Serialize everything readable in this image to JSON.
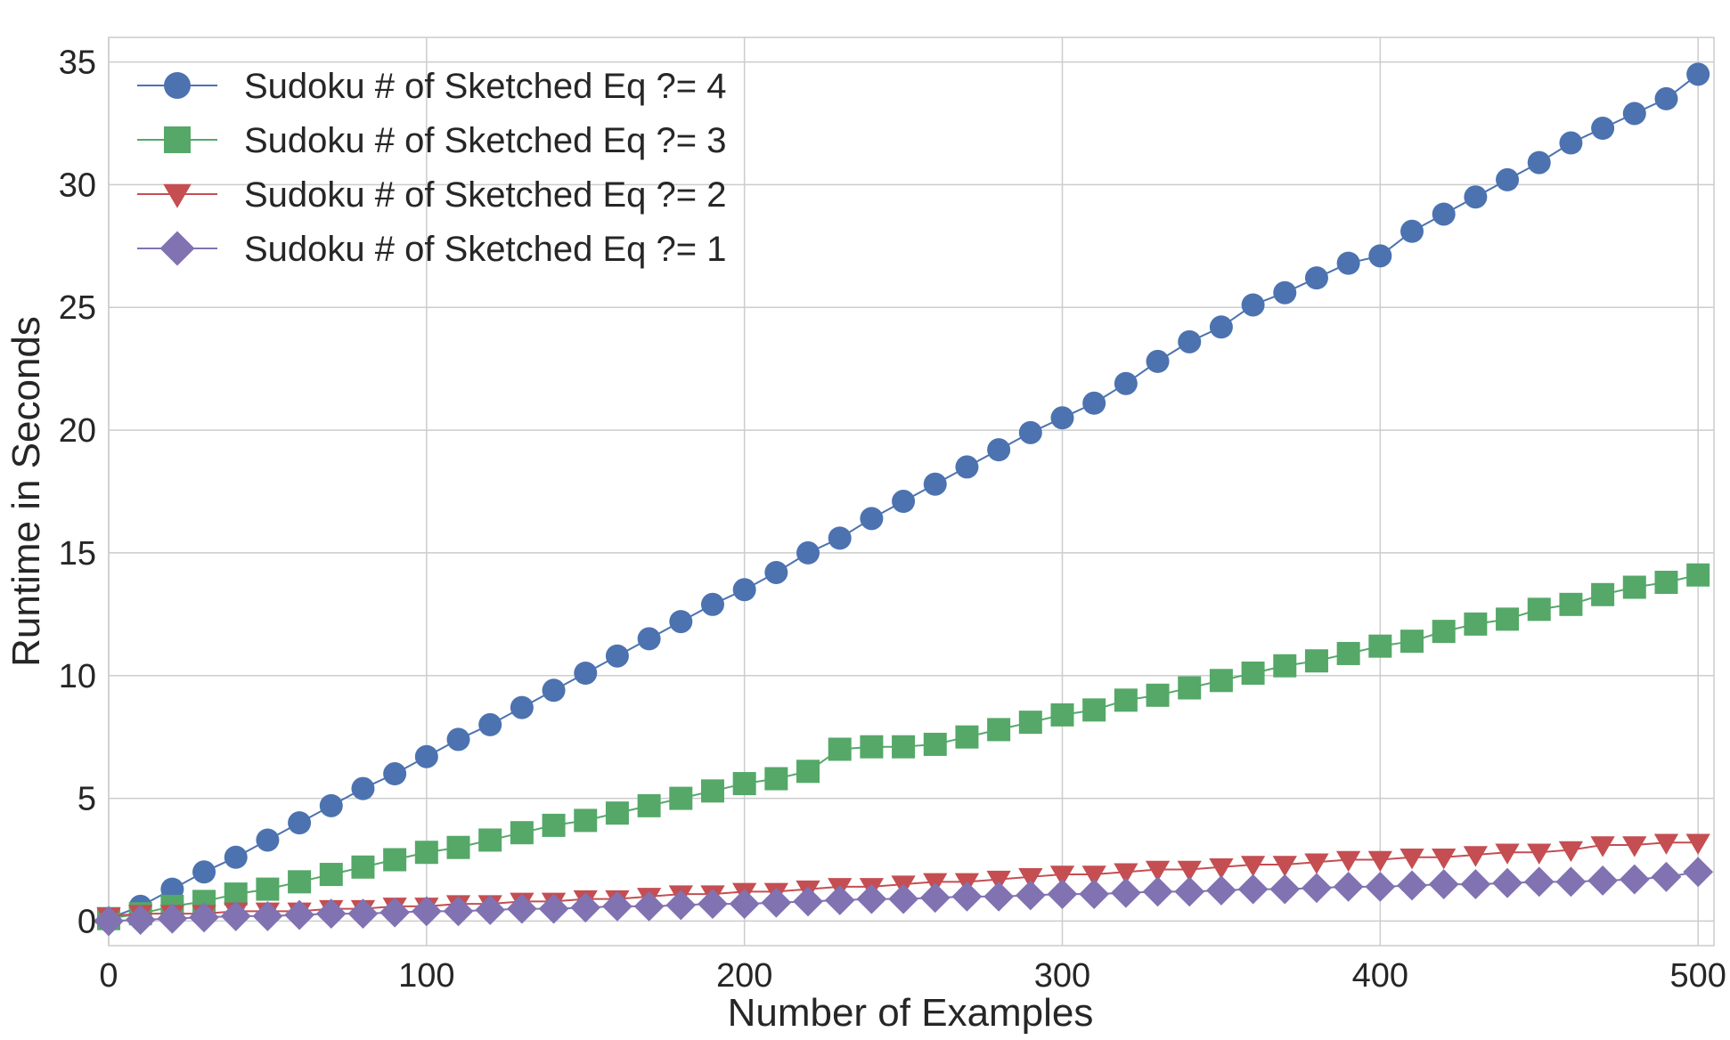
{
  "chart_data": {
    "type": "line",
    "xlabel": "Number of Examples",
    "ylabel": "Runtime in Seconds",
    "xlim": [
      0,
      505
    ],
    "ylim": [
      -1,
      36
    ],
    "xticks": [
      0,
      100,
      200,
      300,
      400,
      500
    ],
    "yticks": [
      0,
      5,
      10,
      15,
      20,
      25,
      30,
      35
    ],
    "grid": true,
    "legend_position": "top-left",
    "x": [
      0,
      10,
      20,
      30,
      40,
      50,
      60,
      70,
      80,
      90,
      100,
      110,
      120,
      130,
      140,
      150,
      160,
      170,
      180,
      190,
      200,
      210,
      220,
      230,
      240,
      250,
      260,
      270,
      280,
      290,
      300,
      310,
      320,
      330,
      340,
      350,
      360,
      370,
      380,
      390,
      400,
      410,
      420,
      430,
      440,
      450,
      460,
      470,
      480,
      490,
      500
    ],
    "series": [
      {
        "name": "Sudoku # of Sketched Eq ?= 4",
        "color": "#4c72b0",
        "marker": "circle",
        "values": [
          0.1,
          0.6,
          1.3,
          2.0,
          2.6,
          3.3,
          4.0,
          4.7,
          5.4,
          6.0,
          6.7,
          7.4,
          8.0,
          8.7,
          9.4,
          10.1,
          10.8,
          11.5,
          12.2,
          12.9,
          13.5,
          14.2,
          15.0,
          15.6,
          16.4,
          17.1,
          17.8,
          18.5,
          19.2,
          19.9,
          20.5,
          21.1,
          21.9,
          22.8,
          23.6,
          24.2,
          25.1,
          25.6,
          26.2,
          26.8,
          27.1,
          28.1,
          28.8,
          29.5,
          30.2,
          30.9,
          31.7,
          32.3,
          32.9,
          33.5,
          34.5
        ]
      },
      {
        "name": "Sudoku # of Sketched Eq ?= 3",
        "color": "#55a868",
        "marker": "square",
        "values": [
          0.1,
          0.3,
          0.6,
          0.8,
          1.1,
          1.3,
          1.6,
          1.9,
          2.2,
          2.5,
          2.8,
          3.0,
          3.3,
          3.6,
          3.9,
          4.1,
          4.4,
          4.7,
          5.0,
          5.3,
          5.6,
          5.8,
          6.1,
          7.0,
          7.1,
          7.1,
          7.2,
          7.5,
          7.8,
          8.1,
          8.4,
          8.6,
          9.0,
          9.2,
          9.5,
          9.8,
          10.1,
          10.4,
          10.6,
          10.9,
          11.2,
          11.4,
          11.8,
          12.1,
          12.3,
          12.7,
          12.9,
          13.3,
          13.6,
          13.8,
          14.1
        ]
      },
      {
        "name": "Sudoku # of Sketched Eq ?= 2",
        "color": "#c44e52",
        "marker": "triangle-down",
        "values": [
          0.2,
          0.3,
          0.3,
          0.3,
          0.4,
          0.4,
          0.4,
          0.5,
          0.5,
          0.6,
          0.6,
          0.7,
          0.7,
          0.8,
          0.8,
          0.9,
          0.9,
          1.0,
          1.1,
          1.1,
          1.2,
          1.2,
          1.3,
          1.4,
          1.4,
          1.5,
          1.6,
          1.6,
          1.7,
          1.8,
          1.9,
          1.9,
          2.0,
          2.1,
          2.1,
          2.2,
          2.3,
          2.3,
          2.4,
          2.5,
          2.5,
          2.6,
          2.6,
          2.7,
          2.8,
          2.8,
          2.9,
          3.1,
          3.1,
          3.2,
          3.2
        ]
      },
      {
        "name": "Sudoku # of Sketched Eq ?= 1",
        "color": "#8172b2",
        "marker": "diamond",
        "values": [
          0.0,
          0.05,
          0.1,
          0.15,
          0.2,
          0.2,
          0.25,
          0.3,
          0.3,
          0.35,
          0.4,
          0.4,
          0.45,
          0.5,
          0.5,
          0.55,
          0.6,
          0.6,
          0.65,
          0.7,
          0.7,
          0.75,
          0.8,
          0.85,
          0.9,
          0.9,
          0.95,
          1.0,
          1.0,
          1.05,
          1.1,
          1.1,
          1.15,
          1.2,
          1.2,
          1.25,
          1.3,
          1.3,
          1.35,
          1.4,
          1.4,
          1.45,
          1.5,
          1.5,
          1.55,
          1.6,
          1.6,
          1.65,
          1.7,
          1.8,
          2.0
        ]
      }
    ]
  }
}
